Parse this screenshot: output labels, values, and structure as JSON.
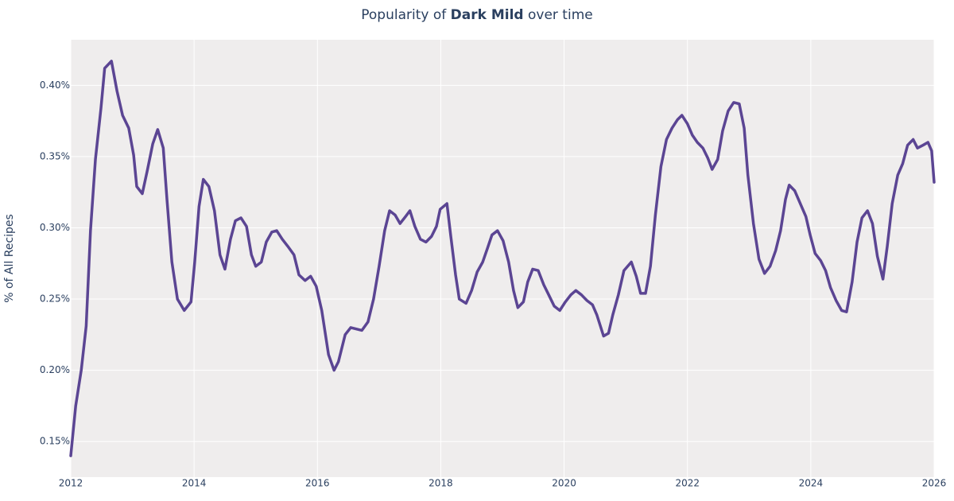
{
  "chart_data": {
    "type": "line",
    "title_parts": [
      "Popularity of ",
      "Dark Mild",
      " over time"
    ],
    "ylabel": "% of All Recipes",
    "grid": true,
    "xlim": [
      2012,
      2026
    ],
    "xticks": [
      2012,
      2014,
      2016,
      2018,
      2020,
      2022,
      2024,
      2026
    ],
    "ylim": [
      0.125,
      0.432
    ],
    "yticks": [
      {
        "value": 0.15,
        "label": "0.15%"
      },
      {
        "value": 0.2,
        "label": "0.20%"
      },
      {
        "value": 0.25,
        "label": "0.25%"
      },
      {
        "value": 0.3,
        "label": "0.30%"
      },
      {
        "value": 0.35,
        "label": "0.35%"
      },
      {
        "value": 0.4,
        "label": "0.40%"
      }
    ],
    "x": [
      2012.0,
      2012.08,
      2012.17,
      2012.25,
      2012.32,
      2012.4,
      2012.49,
      2012.55,
      2012.66,
      2012.75,
      2012.84,
      2012.94,
      2013.02,
      2013.07,
      2013.16,
      2013.24,
      2013.33,
      2013.41,
      2013.5,
      2013.56,
      2013.64,
      2013.73,
      2013.84,
      2013.95,
      2014.01,
      2014.08,
      2014.15,
      2014.24,
      2014.33,
      2014.42,
      2014.5,
      2014.59,
      2014.67,
      2014.76,
      2014.85,
      2014.93,
      2015.0,
      2015.09,
      2015.17,
      2015.26,
      2015.34,
      2015.43,
      2015.52,
      2015.62,
      2015.7,
      2015.8,
      2015.89,
      2015.98,
      2016.07,
      2016.18,
      2016.27,
      2016.34,
      2016.45,
      2016.54,
      2016.63,
      2016.72,
      2016.82,
      2016.91,
      2017.0,
      2017.09,
      2017.17,
      2017.26,
      2017.34,
      2017.43,
      2017.5,
      2017.58,
      2017.67,
      2017.76,
      2017.85,
      2017.93,
      2017.99,
      2018.1,
      2018.16,
      2018.24,
      2018.3,
      2018.41,
      2018.5,
      2018.59,
      2018.68,
      2018.76,
      2018.83,
      2018.92,
      2019.01,
      2019.1,
      2019.18,
      2019.25,
      2019.34,
      2019.41,
      2019.49,
      2019.58,
      2019.67,
      2019.75,
      2019.84,
      2019.93,
      2020.02,
      2020.11,
      2020.19,
      2020.28,
      2020.37,
      2020.46,
      2020.53,
      2020.64,
      2020.72,
      2020.79,
      2020.88,
      2020.97,
      2021.09,
      2021.17,
      2021.24,
      2021.32,
      2021.4,
      2021.48,
      2021.57,
      2021.66,
      2021.75,
      2021.84,
      2021.91,
      2022.0,
      2022.08,
      2022.16,
      2022.25,
      2022.33,
      2022.4,
      2022.49,
      2022.57,
      2022.66,
      2022.75,
      2022.84,
      2022.92,
      2022.98,
      2023.07,
      2023.16,
      2023.25,
      2023.34,
      2023.43,
      2023.51,
      2023.59,
      2023.65,
      2023.74,
      2023.83,
      2023.92,
      2023.99,
      2024.07,
      2024.16,
      2024.24,
      2024.32,
      2024.41,
      2024.5,
      2024.58,
      2024.67,
      2024.75,
      2024.83,
      2024.92,
      2025.0,
      2025.08,
      2025.17,
      2025.24,
      2025.32,
      2025.41,
      2025.49,
      2025.57,
      2025.66,
      2025.73,
      2025.82,
      2025.9,
      2025.96,
      2026.0
    ],
    "series": [
      {
        "color": "#5b4593",
        "values": [
          0.14,
          0.175,
          0.2,
          0.231,
          0.298,
          0.348,
          0.384,
          0.412,
          0.417,
          0.396,
          0.379,
          0.37,
          0.351,
          0.329,
          0.324,
          0.34,
          0.359,
          0.369,
          0.356,
          0.32,
          0.276,
          0.25,
          0.242,
          0.248,
          0.276,
          0.315,
          0.334,
          0.329,
          0.312,
          0.281,
          0.271,
          0.292,
          0.305,
          0.307,
          0.301,
          0.281,
          0.273,
          0.276,
          0.29,
          0.297,
          0.298,
          0.292,
          0.287,
          0.281,
          0.267,
          0.263,
          0.266,
          0.259,
          0.242,
          0.211,
          0.2,
          0.206,
          0.225,
          0.23,
          0.229,
          0.228,
          0.234,
          0.25,
          0.273,
          0.298,
          0.312,
          0.309,
          0.303,
          0.308,
          0.312,
          0.301,
          0.292,
          0.29,
          0.294,
          0.301,
          0.313,
          0.317,
          0.295,
          0.267,
          0.25,
          0.247,
          0.256,
          0.269,
          0.276,
          0.286,
          0.295,
          0.298,
          0.291,
          0.276,
          0.256,
          0.244,
          0.248,
          0.262,
          0.271,
          0.27,
          0.26,
          0.253,
          0.245,
          0.242,
          0.248,
          0.253,
          0.256,
          0.253,
          0.249,
          0.246,
          0.239,
          0.224,
          0.226,
          0.239,
          0.253,
          0.27,
          0.276,
          0.266,
          0.254,
          0.254,
          0.273,
          0.309,
          0.343,
          0.362,
          0.37,
          0.376,
          0.379,
          0.373,
          0.365,
          0.36,
          0.356,
          0.349,
          0.341,
          0.348,
          0.368,
          0.382,
          0.388,
          0.387,
          0.37,
          0.337,
          0.303,
          0.278,
          0.268,
          0.273,
          0.284,
          0.298,
          0.32,
          0.33,
          0.326,
          0.317,
          0.308,
          0.295,
          0.282,
          0.277,
          0.27,
          0.258,
          0.249,
          0.242,
          0.241,
          0.262,
          0.29,
          0.307,
          0.312,
          0.303,
          0.28,
          0.264,
          0.287,
          0.317,
          0.337,
          0.345,
          0.358,
          0.362,
          0.356,
          0.358,
          0.36,
          0.354,
          0.332
        ]
      }
    ]
  }
}
